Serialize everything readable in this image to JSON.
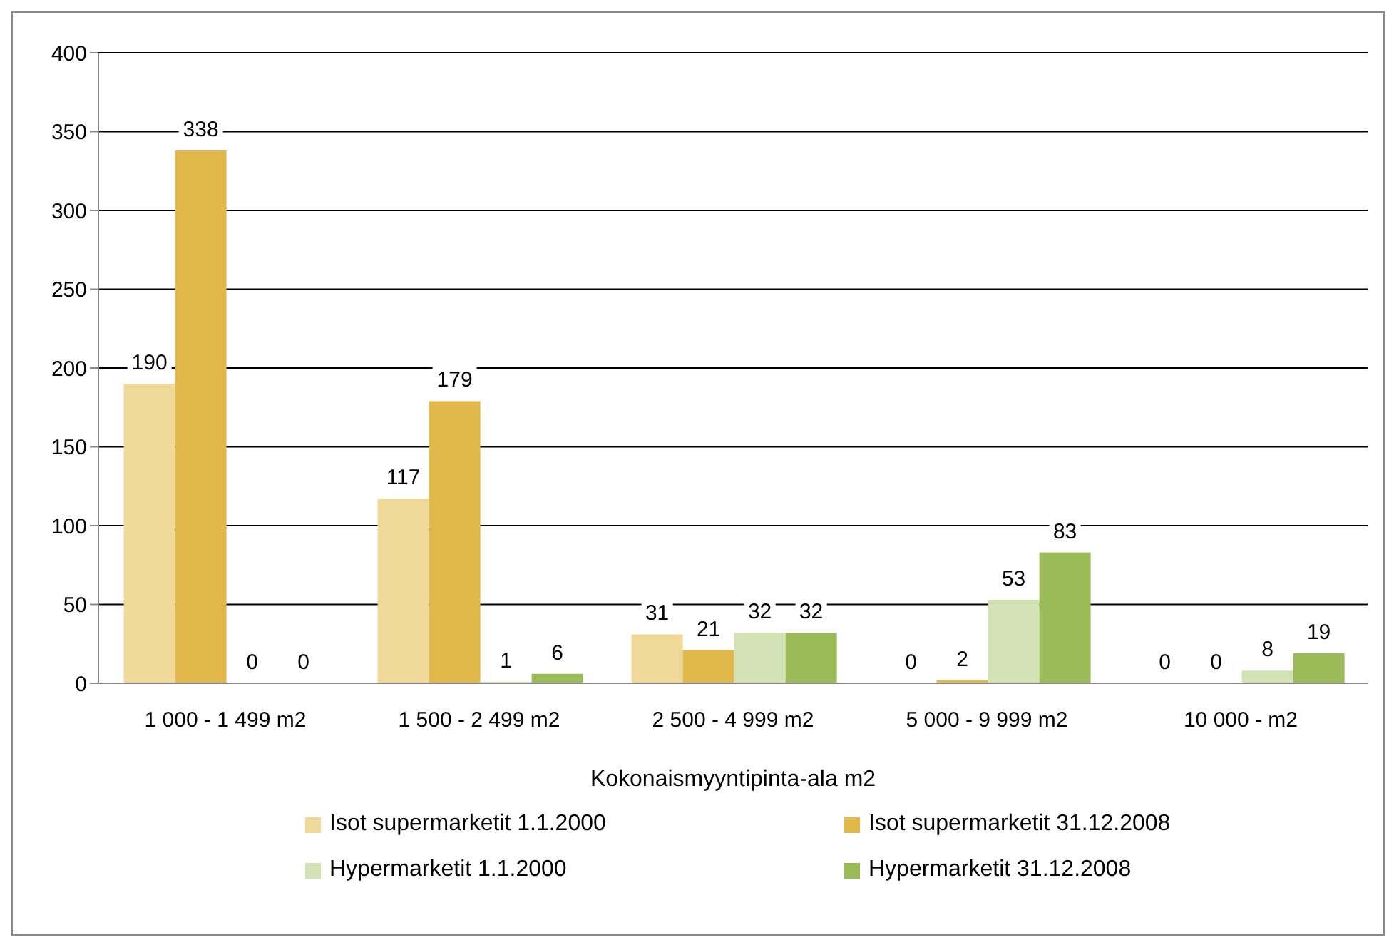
{
  "chart_data": {
    "type": "bar",
    "xlabel": "Kokonaismyyntipinta-ala m2",
    "categories": [
      "1 000 - 1 499 m2",
      "1 500 - 2 499 m2",
      "2 500 - 4 999 m2",
      "5 000 - 9 999 m2",
      "10 000  -  m2"
    ],
    "series": [
      {
        "name": "Isot supermarketit 1.1.2000",
        "color": "#f0d899",
        "values": [
          190,
          117,
          31,
          0,
          0
        ]
      },
      {
        "name": "Isot supermarketit 31.12.2008",
        "color": "#e2b84a",
        "values": [
          338,
          179,
          21,
          2,
          0
        ]
      },
      {
        "name": "Hypermarketit 1.1.2000",
        "color": "#d3e2b5",
        "values": [
          0,
          1,
          32,
          53,
          8
        ]
      },
      {
        "name": "Hypermarketit 31.12.2008",
        "color": "#9bbb59",
        "values": [
          0,
          6,
          32,
          83,
          19
        ]
      }
    ],
    "ylim": [
      0,
      400
    ],
    "yticks": [
      0,
      50,
      100,
      150,
      200,
      250,
      300,
      350,
      400
    ],
    "grid": "y",
    "legend": "bottom",
    "data_labels": true
  }
}
